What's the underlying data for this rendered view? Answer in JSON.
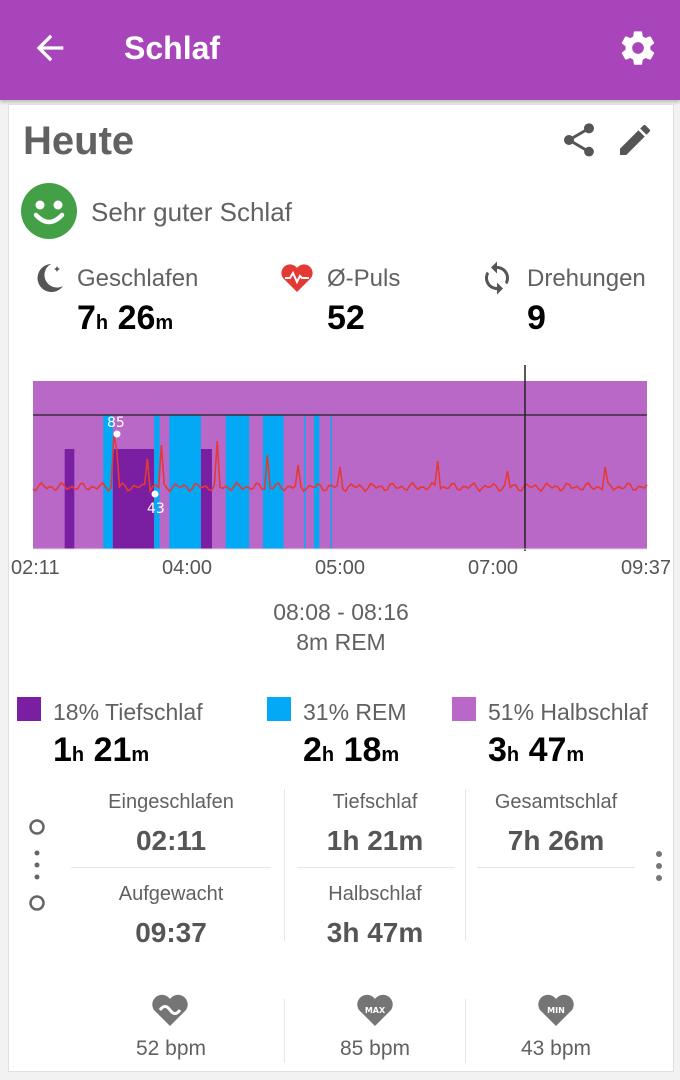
{
  "appbar": {
    "title": "Schlaf",
    "back_icon": "arrow-back-icon",
    "settings_icon": "gear-icon"
  },
  "header": {
    "title": "Heute",
    "share_icon": "share-icon",
    "edit_icon": "pencil-icon"
  },
  "quality": {
    "icon": "smiley-icon",
    "text": "Sehr guter Schlaf",
    "color": "#43a047"
  },
  "stats": [
    {
      "icon": "moon-icon",
      "label": "Geschlafen",
      "h": "7",
      "h_unit": "h",
      "m": "26",
      "m_unit": "m"
    },
    {
      "icon": "heart-pulse-icon",
      "label": "Ø-Puls",
      "value": "52"
    },
    {
      "icon": "sync-icon",
      "label": "Drehungen",
      "value": "9"
    }
  ],
  "chart_data": {
    "type": "area",
    "x_start": "02:11",
    "x_end": "09:37",
    "ticks": [
      "02:11",
      "04:00",
      "05:00",
      "07:00",
      "09:37"
    ],
    "colors": {
      "deep": "#7b1fa2",
      "rem": "#03a9f4",
      "light": "#ba68c8",
      "awake": "#ffffff",
      "pulse": "#e53935"
    },
    "stages": [
      {
        "stage": "light",
        "start": "02:11",
        "end": "02:34"
      },
      {
        "stage": "deep",
        "start": "02:34",
        "end": "02:41"
      },
      {
        "stage": "light",
        "start": "02:41",
        "end": "03:02"
      },
      {
        "stage": "rem",
        "start": "03:02",
        "end": "03:09"
      },
      {
        "stage": "deep",
        "start": "03:09",
        "end": "03:39"
      },
      {
        "stage": "rem",
        "start": "03:39",
        "end": "03:43"
      },
      {
        "stage": "light",
        "start": "03:43",
        "end": "03:50"
      },
      {
        "stage": "rem",
        "start": "03:50",
        "end": "04:13"
      },
      {
        "stage": "deep",
        "start": "04:13",
        "end": "04:21"
      },
      {
        "stage": "light",
        "start": "04:21",
        "end": "04:31"
      },
      {
        "stage": "rem",
        "start": "04:31",
        "end": "04:48"
      },
      {
        "stage": "light",
        "start": "04:48",
        "end": "04:58"
      },
      {
        "stage": "rem",
        "start": "04:58",
        "end": "05:13"
      },
      {
        "stage": "light",
        "start": "05:13",
        "end": "05:28"
      },
      {
        "stage": "rem",
        "start": "05:28",
        "end": "05:29"
      },
      {
        "stage": "light",
        "start": "05:29",
        "end": "05:35"
      },
      {
        "stage": "rem",
        "start": "05:35",
        "end": "05:39"
      },
      {
        "stage": "light",
        "start": "05:39",
        "end": "05:47"
      },
      {
        "stage": "rem",
        "start": "05:47",
        "end": "05:48"
      },
      {
        "stage": "light",
        "start": "05:48",
        "end": "06:22"
      }
    ],
    "awake_gaps": [
      {
        "start": "02:34",
        "end": "02:41"
      },
      {
        "start": "03:09",
        "end": "03:39"
      },
      {
        "start": "04:13",
        "end": "04:21"
      }
    ],
    "pulse_min": {
      "label": "43"
    },
    "pulse_max": {
      "label": "85"
    },
    "selection": "08:08"
  },
  "selection": {
    "time": "08:08 - 08:16",
    "kind": "8m REM"
  },
  "legend": [
    {
      "name": "18% Tiefschlaf",
      "h": "1",
      "m": "21",
      "color": "#7b1fa2"
    },
    {
      "name": "31% REM",
      "h": "2",
      "m": "18",
      "color": "#03a9f4"
    },
    {
      "name": "51% Halbschlaf",
      "h": "3",
      "m": "47",
      "color": "#ba68c8"
    }
  ],
  "units": {
    "h": "h",
    "m": "m"
  },
  "details": {
    "eingeschlafen_label": "Eingeschlafen",
    "eingeschlafen_value": "02:11",
    "aufgewacht_label": "Aufgewacht",
    "aufgewacht_value": "09:37",
    "tiefschlaf_label": "Tiefschlaf",
    "tiefschlaf_value": "1h 21m",
    "halbschlaf_label": "Halbschlaf",
    "halbschlaf_value": "3h 47m",
    "gesamtschlaf_label": "Gesamtschlaf",
    "gesamtschlaf_value": "7h 26m"
  },
  "heart_rates": [
    {
      "icon": "heart-avg-icon",
      "value": "52 bpm"
    },
    {
      "icon": "heart-max-icon",
      "badge": "MAX",
      "value": "85 bpm"
    },
    {
      "icon": "heart-min-icon",
      "badge": "MIN",
      "value": "43 bpm"
    }
  ]
}
